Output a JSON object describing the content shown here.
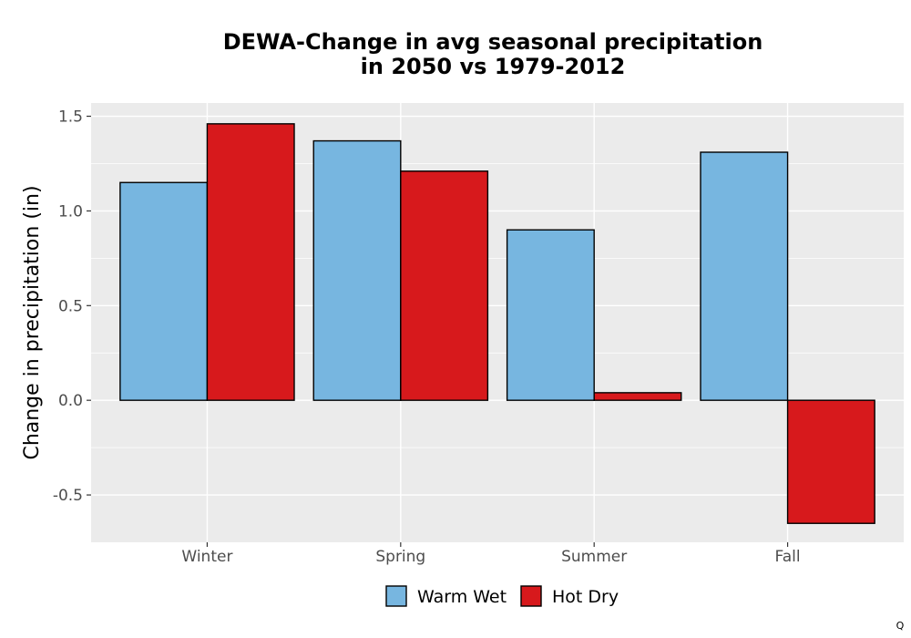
{
  "chart_data": {
    "type": "bar",
    "title": [
      "DEWA-Change in avg seasonal precipitation",
      "in 2050 vs 1979-2012"
    ],
    "xlabel": "",
    "ylabel": "Change in precipitation (in)",
    "categories": [
      "Winter",
      "Spring",
      "Summer",
      "Fall"
    ],
    "series": [
      {
        "name": "Warm Wet",
        "color": "#77b6e0",
        "values": [
          1.15,
          1.37,
          0.9,
          1.31
        ]
      },
      {
        "name": "Hot Dry",
        "color": "#d7191c",
        "values": [
          1.46,
          1.21,
          0.04,
          -0.65
        ]
      }
    ],
    "ylim": [
      -0.75,
      1.57
    ],
    "yticks": [
      -0.5,
      0.0,
      0.5,
      1.0,
      1.5
    ],
    "ytick_labels": [
      "-0.5",
      "0.0",
      "0.5",
      "1.0",
      "1.5"
    ],
    "grid": true,
    "legend_position": "bottom",
    "panel_background": "#ebebeb"
  },
  "corner_mark": "Q"
}
